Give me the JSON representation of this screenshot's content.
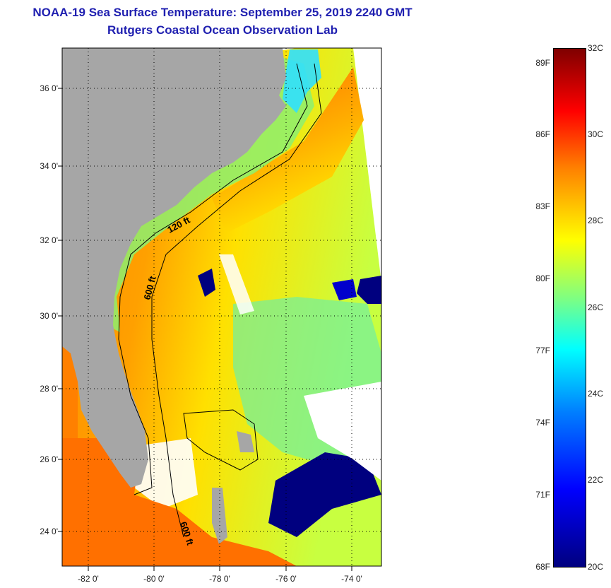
{
  "title": {
    "line1": "NOAA-19 Sea Surface Temperature:  September 25, 2019 2240 GMT",
    "line2": "Rutgers Coastal Ocean Observation Lab"
  },
  "map": {
    "lat_labels": [
      "36 0'",
      "34 0'",
      "32 0'",
      "30 0'",
      "28 0'",
      "26 0'",
      "24 0'"
    ],
    "lon_labels": [
      "-82 0'",
      "-80 0'",
      "-78 0'",
      "-76 0'",
      "-74 0'"
    ],
    "contour_labels": [
      "120 ft",
      "600 ft",
      "600 ft"
    ],
    "colors": {
      "land": "#a6a6a6",
      "cloud": "#ffffff",
      "cold": "#00007f",
      "warm": "#ff6a00"
    }
  },
  "colorbar": {
    "fahrenheit": [
      "89F",
      "86F",
      "83F",
      "80F",
      "77F",
      "74F",
      "71F",
      "68F"
    ],
    "celsius": [
      "32C",
      "30C",
      "28C",
      "26C",
      "24C",
      "22C",
      "20C"
    ]
  }
}
